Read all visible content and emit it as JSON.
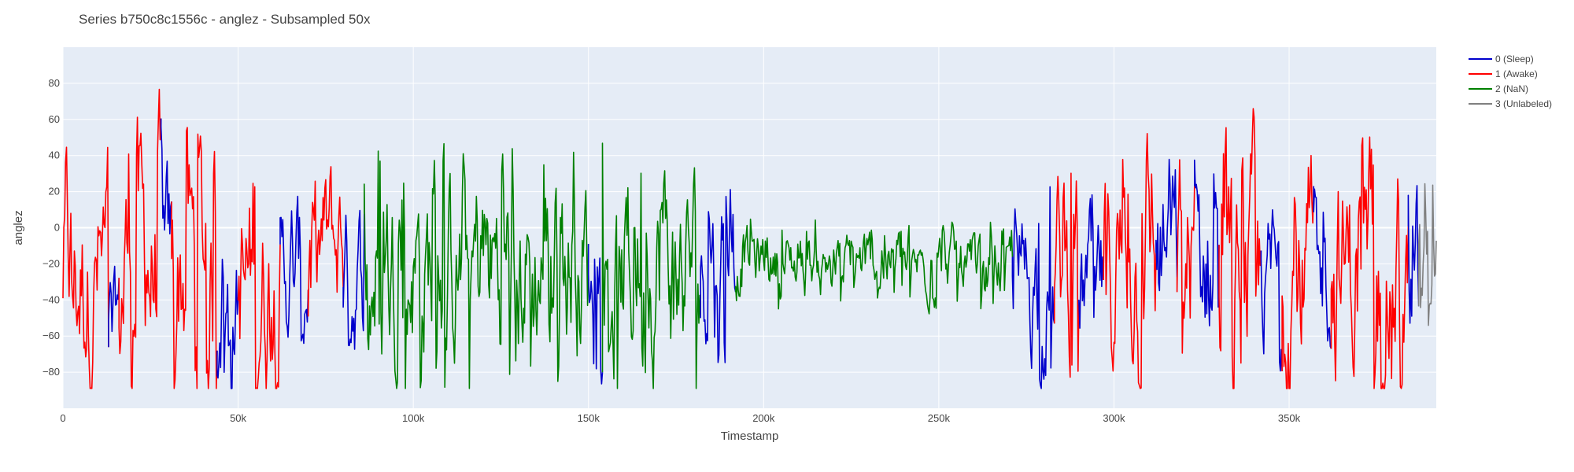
{
  "chart_data": {
    "type": "line",
    "title": "Series b750c8c1556c - anglez - Subsampled 50x",
    "xlabel": "Timestamp",
    "ylabel": "anglez",
    "xlim": [
      0,
      392000
    ],
    "ylim": [
      -100,
      100
    ],
    "x_ticks": [
      0,
      50000,
      100000,
      150000,
      200000,
      250000,
      300000,
      350000
    ],
    "x_tick_labels": [
      "0",
      "50k",
      "100k",
      "150k",
      "200k",
      "250k",
      "300k",
      "350k"
    ],
    "y_ticks": [
      -80,
      -60,
      -40,
      -20,
      0,
      20,
      40,
      60,
      80
    ],
    "y_tick_labels": [
      "−80",
      "−60",
      "−40",
      "−20",
      "0",
      "20",
      "40",
      "60",
      "80"
    ],
    "grid": true,
    "legend_position": "top-right",
    "series": [
      {
        "name": "0 (Sleep)",
        "color": "#0000cc"
      },
      {
        "name": "1 (Awake)",
        "color": "#ff0000"
      },
      {
        "name": "2 (NaN)",
        "color": "#008000"
      },
      {
        "name": "3 (Unlabeled)",
        "color": "#808080"
      }
    ],
    "segments": [
      {
        "series": 1,
        "x": [
          0,
          13000
        ],
        "amp": 80,
        "mean": -25
      },
      {
        "series": 0,
        "x": [
          13000,
          16000
        ],
        "amp": 35,
        "mean": -45
      },
      {
        "series": 1,
        "x": [
          16000,
          28000
        ],
        "amp": 85,
        "mean": -25
      },
      {
        "series": 0,
        "x": [
          28000,
          31000
        ],
        "amp": 60,
        "mean": -20
      },
      {
        "series": 1,
        "x": [
          31000,
          44000
        ],
        "amp": 80,
        "mean": -25
      },
      {
        "series": 0,
        "x": [
          44000,
          50000
        ],
        "amp": 55,
        "mean": -40
      },
      {
        "series": 1,
        "x": [
          50000,
          62000
        ],
        "amp": 80,
        "mean": -30
      },
      {
        "series": 0,
        "x": [
          62000,
          70000
        ],
        "amp": 55,
        "mean": -25
      },
      {
        "series": 1,
        "x": [
          70000,
          80000
        ],
        "amp": 60,
        "mean": -10
      },
      {
        "series": 0,
        "x": [
          80000,
          86000
        ],
        "amp": 55,
        "mean": -25
      },
      {
        "series": 2,
        "x": [
          86000,
          150000
        ],
        "amp": 75,
        "mean": -20
      },
      {
        "series": 0,
        "x": [
          150000,
          154000
        ],
        "amp": 40,
        "mean": -40
      },
      {
        "series": 2,
        "x": [
          154000,
          182000
        ],
        "amp": 75,
        "mean": -20
      },
      {
        "series": 0,
        "x": [
          182000,
          192000
        ],
        "amp": 55,
        "mean": -20
      },
      {
        "series": 2,
        "x": [
          192000,
          271000
        ],
        "amp": 25,
        "mean": -20
      },
      {
        "series": 0,
        "x": [
          271000,
          283000
        ],
        "amp": 55,
        "mean": -30
      },
      {
        "series": 1,
        "x": [
          283000,
          290000
        ],
        "amp": 70,
        "mean": -25
      },
      {
        "series": 0,
        "x": [
          290000,
          297000
        ],
        "amp": 55,
        "mean": -35
      },
      {
        "series": 1,
        "x": [
          297000,
          312000
        ],
        "amp": 80,
        "mean": -20
      },
      {
        "series": 0,
        "x": [
          312000,
          318000
        ],
        "amp": 65,
        "mean": -15
      },
      {
        "series": 1,
        "x": [
          318000,
          323000
        ],
        "amp": 80,
        "mean": -10
      },
      {
        "series": 0,
        "x": [
          323000,
          330000
        ],
        "amp": 75,
        "mean": -10
      },
      {
        "series": 1,
        "x": [
          330000,
          342000
        ],
        "amp": 85,
        "mean": -30
      },
      {
        "series": 0,
        "x": [
          342000,
          348000
        ],
        "amp": 55,
        "mean": -30
      },
      {
        "series": 1,
        "x": [
          348000,
          357000
        ],
        "amp": 85,
        "mean": -25
      },
      {
        "series": 0,
        "x": [
          357000,
          362000
        ],
        "amp": 50,
        "mean": -30
      },
      {
        "series": 1,
        "x": [
          362000,
          384000
        ],
        "amp": 85,
        "mean": -25
      },
      {
        "series": 0,
        "x": [
          384000,
          387000
        ],
        "amp": 80,
        "mean": -60
      },
      {
        "series": 3,
        "x": [
          387000,
          392000
        ],
        "amp": 50,
        "mean": -20
      }
    ]
  }
}
